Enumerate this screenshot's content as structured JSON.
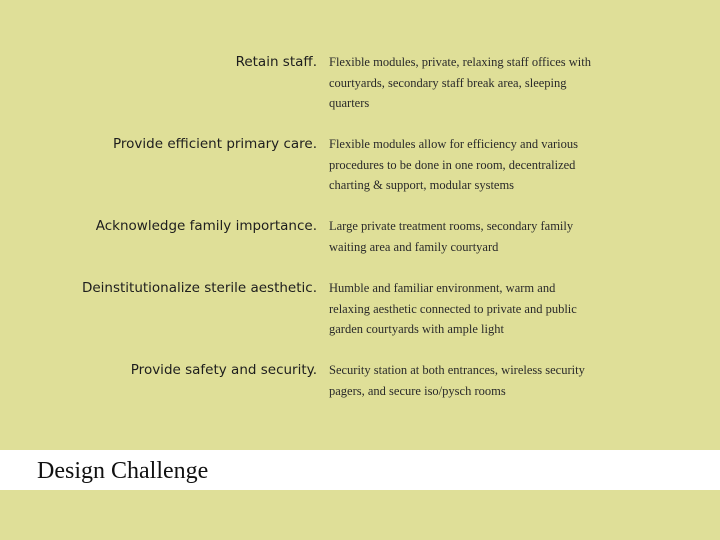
{
  "slide": {
    "background_color": "#dfdf98",
    "title": "Design Challenge",
    "rows": [
      {
        "goal": "Retain staff.",
        "solution": "Flexible modules, private, relaxing staff offices with courtyards, secondary staff break area, sleeping quarters"
      },
      {
        "goal": "Provide efficient primary care.",
        "solution": "Flexible modules allow for efficiency and various procedures to be done in one room, decentralized charting & support, modular systems"
      },
      {
        "goal": "Acknowledge family importance.",
        "solution": "Large private treatment rooms, secondary family waiting area and family courtyard"
      },
      {
        "goal": "Deinstitutionalize sterile aesthetic.",
        "solution": "Humble and familiar environment, warm and relaxing aesthetic connected to private and public garden courtyards with ample light"
      },
      {
        "goal": "Provide safety and security.",
        "solution": "Security station at both entrances, wireless security pagers, and secure iso/pysch rooms"
      }
    ]
  }
}
